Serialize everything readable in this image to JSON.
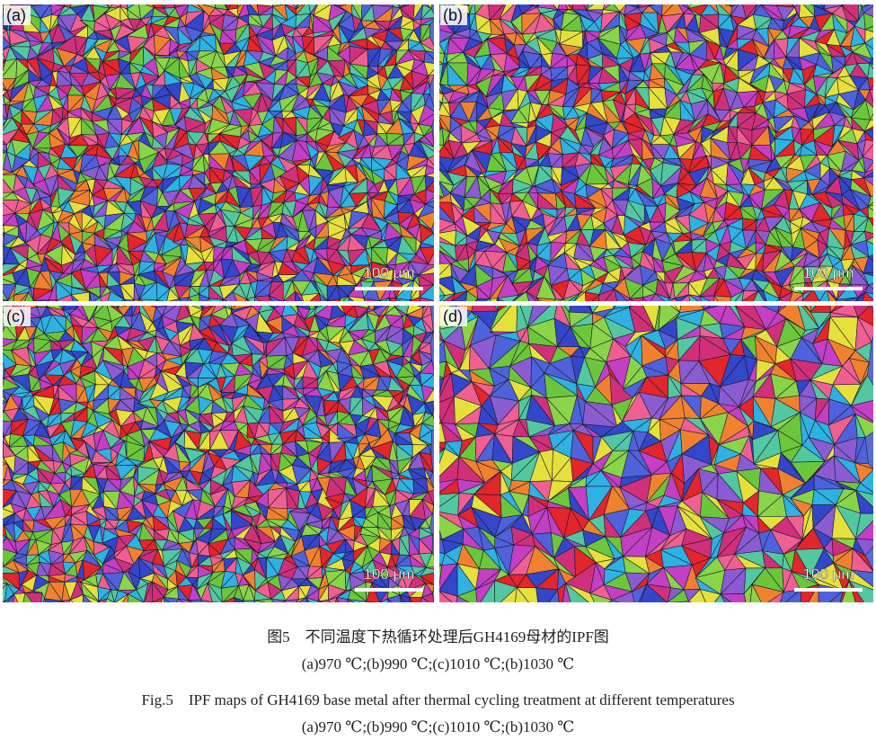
{
  "panels": [
    {
      "label": "(a)",
      "scale_bar": "100 μm"
    },
    {
      "label": "(b)",
      "scale_bar": "100 μm"
    },
    {
      "label": "(c)",
      "scale_bar": "100 μm"
    },
    {
      "label": "(d)",
      "scale_bar": "100 μm"
    }
  ],
  "caption": {
    "cn_title": "图5　不同温度下热循环处理后GH4169母材的IPF图",
    "cn_sub": "(a)970 ℃;(b)990 ℃;(c)1010 ℃;(b)1030 ℃",
    "en_title": "Fig.5　IPF maps of GH4169 base metal after thermal cycling treatment at different temperatures",
    "en_sub": "(a)970 ℃;(b)990 ℃;(c)1010 ℃;(b)1030 ℃"
  }
}
